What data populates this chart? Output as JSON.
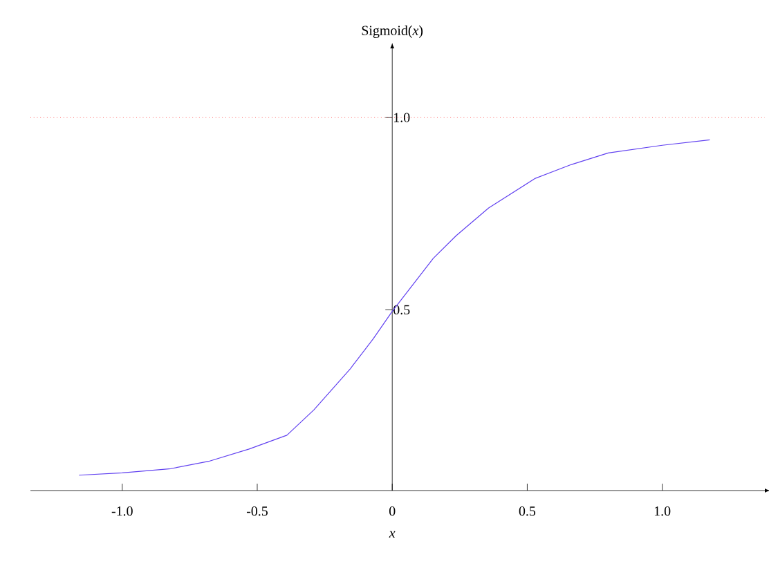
{
  "chart_data": {
    "type": "line",
    "xlabel": "x",
    "ylabel": "Sigmoid(*x*)",
    "x": [
      -1.16,
      -1.0,
      -0.82,
      -0.68,
      -0.53,
      -0.39,
      -0.29,
      -0.155,
      -0.07,
      0,
      0.152,
      0.237,
      0.357,
      0.53,
      0.664,
      0.8,
      1.0,
      1.176
    ],
    "series": [
      {
        "color": "#6040f0",
        "values": [
          0.07,
          0.076,
          0.087,
          0.106,
          0.138,
          0.174,
          0.24,
          0.347,
          0.425,
          0.496,
          0.634,
          0.693,
          0.765,
          0.842,
          0.878,
          0.908,
          0.928,
          0.942
        ]
      }
    ],
    "xlim": [
      -1.34,
      1.38
    ],
    "ylim": [
      0.03,
      1.18
    ],
    "xticks": [
      {
        "value": -1,
        "label": "-1.0"
      },
      {
        "value": -0.5,
        "label": "-0.5"
      },
      0,
      0.5,
      {
        "value": 1,
        "label": "1.0"
      }
    ],
    "yticks": [
      0.5,
      {
        "value": 1,
        "label": "1.0"
      }
    ],
    "ref_lines": [
      {
        "axis": "y",
        "value": 1,
        "color": "#ff0000",
        "line_style": "dotted"
      }
    ],
    "marker": "none",
    "line_style": "solid"
  }
}
